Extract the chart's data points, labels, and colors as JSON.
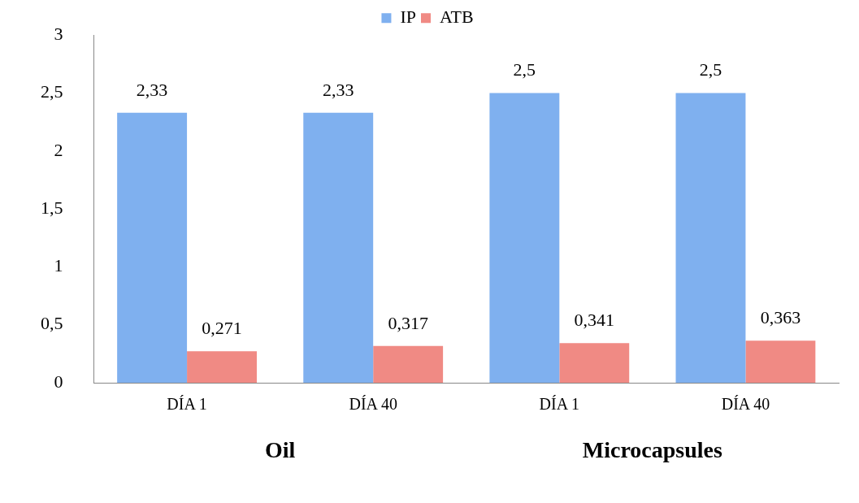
{
  "chart_data": {
    "type": "bar",
    "categories": [
      "DÍA 1",
      "DÍA 40",
      "DÍA 1",
      "DÍA 40"
    ],
    "series": [
      {
        "name": "IP",
        "color": "#7fb0ef",
        "values": [
          2.33,
          2.33,
          2.5,
          2.5
        ],
        "value_labels": [
          "2,33",
          "2,33",
          "2,5",
          "2,5"
        ]
      },
      {
        "name": "ATB",
        "color": "#f08a84",
        "values": [
          0.271,
          0.317,
          0.341,
          0.363
        ],
        "value_labels": [
          "0,271",
          "0,317",
          "0,341",
          "0,363"
        ]
      }
    ],
    "ylim": [
      0,
      3
    ],
    "yticks": [
      0,
      {
        "value": 0.5,
        "label": "0,5"
      },
      1,
      {
        "value": 1.5,
        "label": "1,5"
      },
      2,
      {
        "value": 2.5,
        "label": "2,5"
      },
      3
    ],
    "annotations": [
      "Oil",
      "Microcapsules"
    ],
    "grid": false,
    "legend": "top"
  }
}
